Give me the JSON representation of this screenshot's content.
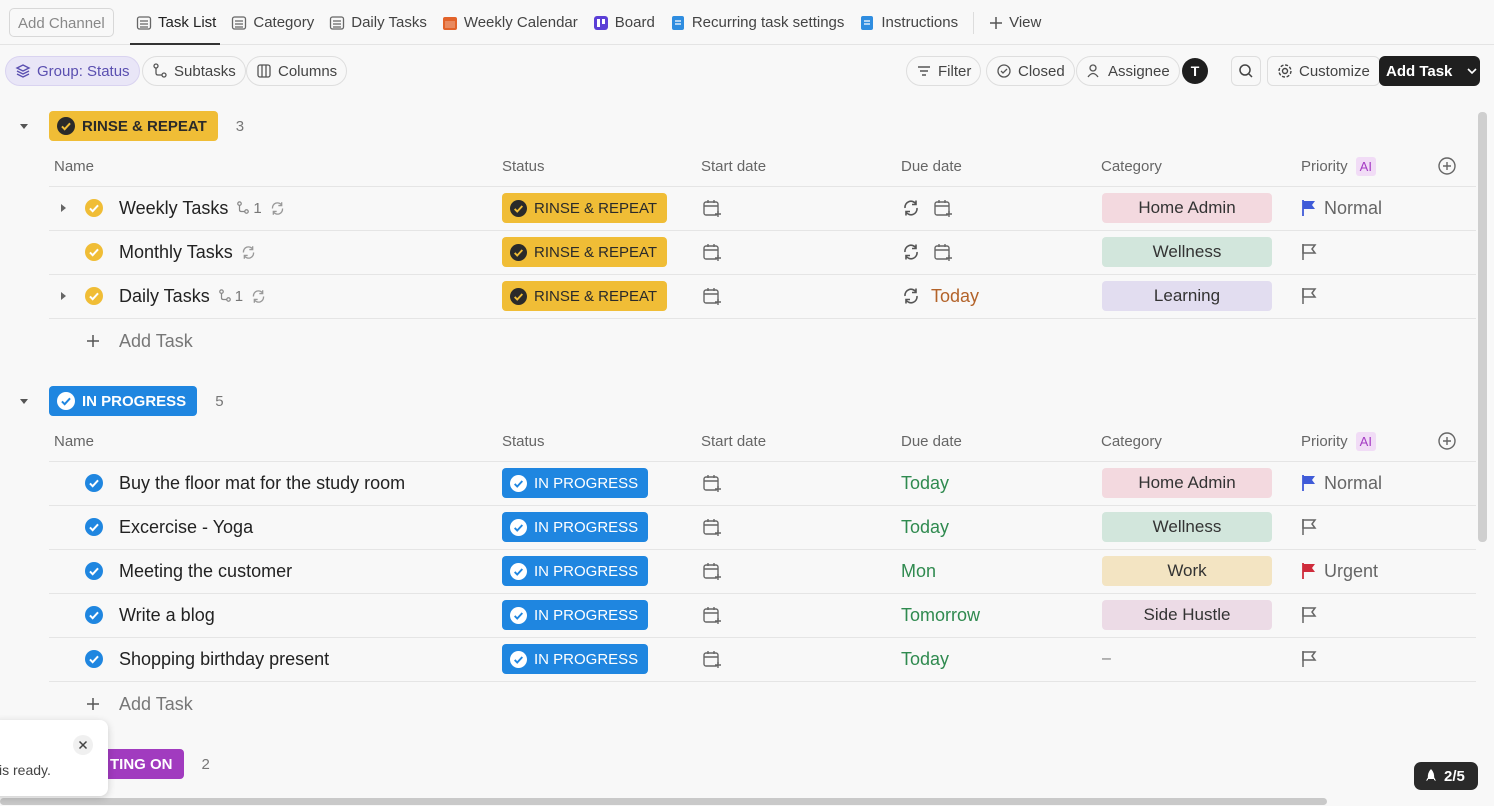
{
  "toolbar": {
    "add_channel": "Add Channel",
    "views": [
      "Task List",
      "Category",
      "Daily Tasks",
      "Weekly Calendar",
      "Board",
      "Recurring task settings",
      "Instructions"
    ],
    "active_view": 0,
    "add_view": "View"
  },
  "controls": {
    "group": "Group: Status",
    "subtasks": "Subtasks",
    "columns": "Columns",
    "filter": "Filter",
    "closed": "Closed",
    "assignee": "Assignee",
    "avatar": "T",
    "customize": "Customize",
    "add_task": "Add Task"
  },
  "columns": [
    "Name",
    "Status",
    "Start date",
    "Due date",
    "Category",
    "Priority"
  ],
  "ai_badge": "AI",
  "groups": [
    {
      "status": "RINSE & REPEAT",
      "count": 3,
      "color": "#f0bd36",
      "text_color": "#2a2a2a",
      "tasks": [
        {
          "name": "Weekly Tasks",
          "subtasks": 1,
          "recurring": true,
          "status": "RINSE & REPEAT",
          "category": {
            "label": "Home Admin",
            "color": "#f3d9df"
          },
          "priority": "Normal",
          "flag_color": "#3f5bd8"
        },
        {
          "name": "Monthly Tasks",
          "recurring": true,
          "status": "RINSE & REPEAT",
          "category": {
            "label": "Wellness",
            "color": "#d2e6dc"
          }
        },
        {
          "name": "Daily Tasks",
          "subtasks": 1,
          "recurring": true,
          "status": "RINSE & REPEAT",
          "due": "Today",
          "due_color": "#b3632a",
          "category": {
            "label": "Learning",
            "color": "#e2ddf0"
          }
        }
      ],
      "add_task": "Add Task"
    },
    {
      "status": "IN PROGRESS",
      "count": 5,
      "color": "#1f86e0",
      "text_color": "#ffffff",
      "tasks": [
        {
          "name": "Buy the floor mat for the study room",
          "status": "IN PROGRESS",
          "due": "Today",
          "due_color": "#2f8a4f",
          "category": {
            "label": "Home Admin",
            "color": "#f3d9df"
          },
          "priority": "Normal",
          "flag_color": "#3f5bd8"
        },
        {
          "name": "Excercise - Yoga",
          "status": "IN PROGRESS",
          "due": "Today",
          "due_color": "#2f8a4f",
          "category": {
            "label": "Wellness",
            "color": "#d2e6dc"
          }
        },
        {
          "name": "Meeting the customer",
          "status": "IN PROGRESS",
          "due": "Mon",
          "due_color": "#2f8a4f",
          "category": {
            "label": "Work",
            "color": "#f3e4c2"
          },
          "priority": "Urgent",
          "flag_color": "#cf2b3b"
        },
        {
          "name": "Write a blog",
          "status": "IN PROGRESS",
          "due": "Tomorrow",
          "due_color": "#2f8a4f",
          "category": {
            "label": "Side Hustle",
            "color": "#ecdbe6"
          }
        },
        {
          "name": "Shopping birthday present",
          "status": "IN PROGRESS",
          "due": "Today",
          "due_color": "#2f8a4f",
          "category": {
            "label": "–"
          }
        }
      ],
      "add_task": "Add Task"
    },
    {
      "status": "TING ON",
      "count": 2,
      "color": "#a13bbf",
      "text_color": "#ffffff",
      "tasks": []
    }
  ],
  "toast": {
    "text": "is ready."
  },
  "progress_badge": "2/5"
}
